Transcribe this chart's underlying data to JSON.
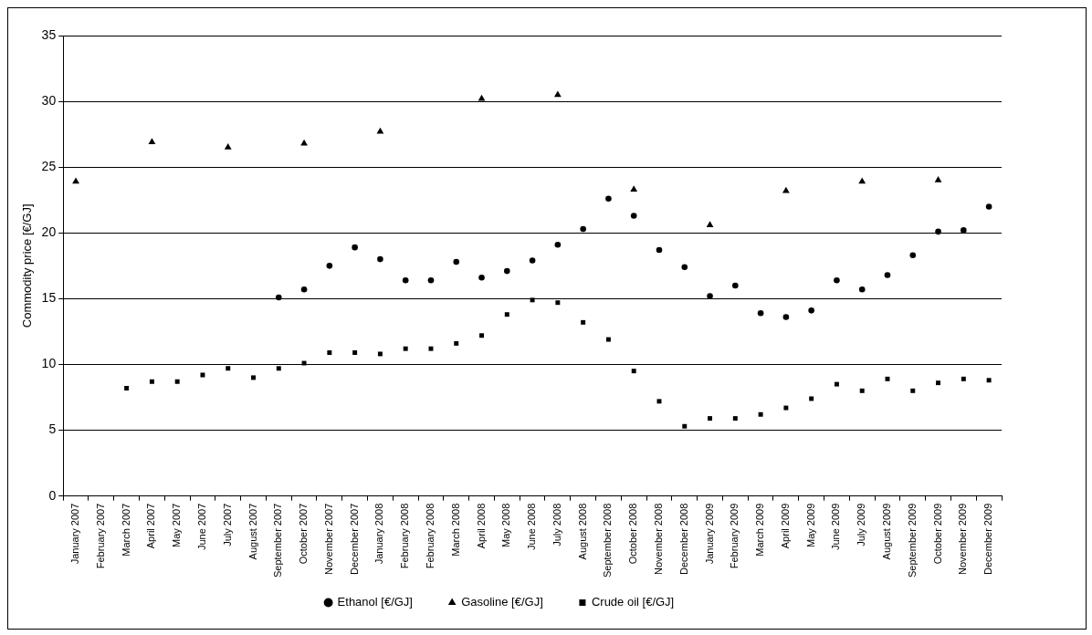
{
  "chart_data": {
    "type": "scatter",
    "ylabel": "Commodity price [€/GJ]",
    "categories": [
      "January 2007",
      "February 2007",
      "March 2007",
      "April 2007",
      "May 2007",
      "June 2007",
      "July 2007",
      "August 2007",
      "September 2007",
      "October 2007",
      "November 2007",
      "December 2007",
      "January 2008",
      "February 2008",
      "February 2008",
      "March 2008",
      "April 2008",
      "May 2008",
      "June 2008",
      "July 2008",
      "August 2008",
      "September 2008",
      "October 2008",
      "November 2008",
      "December 2008",
      "January 2009",
      "February 2009",
      "March 2009",
      "April 2009",
      "May 2009",
      "June 2009",
      "July 2009",
      "August 2009",
      "September 2009",
      "October 2009",
      "November 2009",
      "December 2009"
    ],
    "series": [
      {
        "name": "Ethanol [€/GJ]",
        "color": "#000000",
        "marker": "circle",
        "values": [
          null,
          null,
          null,
          null,
          null,
          null,
          null,
          null,
          15.1,
          15.7,
          17.5,
          18.9,
          18.0,
          16.4,
          16.4,
          17.8,
          16.6,
          17.1,
          17.9,
          19.1,
          20.3,
          22.6,
          21.3,
          18.7,
          17.4,
          15.2,
          16.0,
          13.9,
          13.6,
          14.1,
          16.4,
          15.7,
          16.8,
          18.3,
          20.1,
          20.2,
          22.0
        ]
      },
      {
        "name": "Gasoline [€/GJ]",
        "color": "#000000",
        "marker": "triangle",
        "values": [
          23.9,
          null,
          null,
          26.9,
          null,
          null,
          26.5,
          null,
          null,
          26.8,
          null,
          null,
          27.7,
          null,
          null,
          null,
          30.2,
          null,
          null,
          30.5,
          null,
          null,
          23.3,
          null,
          null,
          20.6,
          null,
          null,
          23.2,
          null,
          null,
          23.9,
          null,
          null,
          24.0,
          null,
          null
        ]
      },
      {
        "name": "Crude oil [€/GJ]",
        "color": "#000000",
        "marker": "square",
        "values": [
          null,
          null,
          8.2,
          8.7,
          8.7,
          9.2,
          9.7,
          9.0,
          9.7,
          10.1,
          10.9,
          10.9,
          10.8,
          11.2,
          11.2,
          11.6,
          12.2,
          13.8,
          14.9,
          14.7,
          13.2,
          11.9,
          9.5,
          7.2,
          5.3,
          5.9,
          5.9,
          6.2,
          6.7,
          7.4,
          8.5,
          8.0,
          8.9,
          8.0,
          8.6,
          8.9,
          8.8
        ]
      }
    ],
    "ylim": [
      0,
      35
    ],
    "yticks": [
      0,
      5,
      10,
      15,
      20,
      25,
      30,
      35
    ],
    "grid": "y",
    "legend": "bottom"
  }
}
